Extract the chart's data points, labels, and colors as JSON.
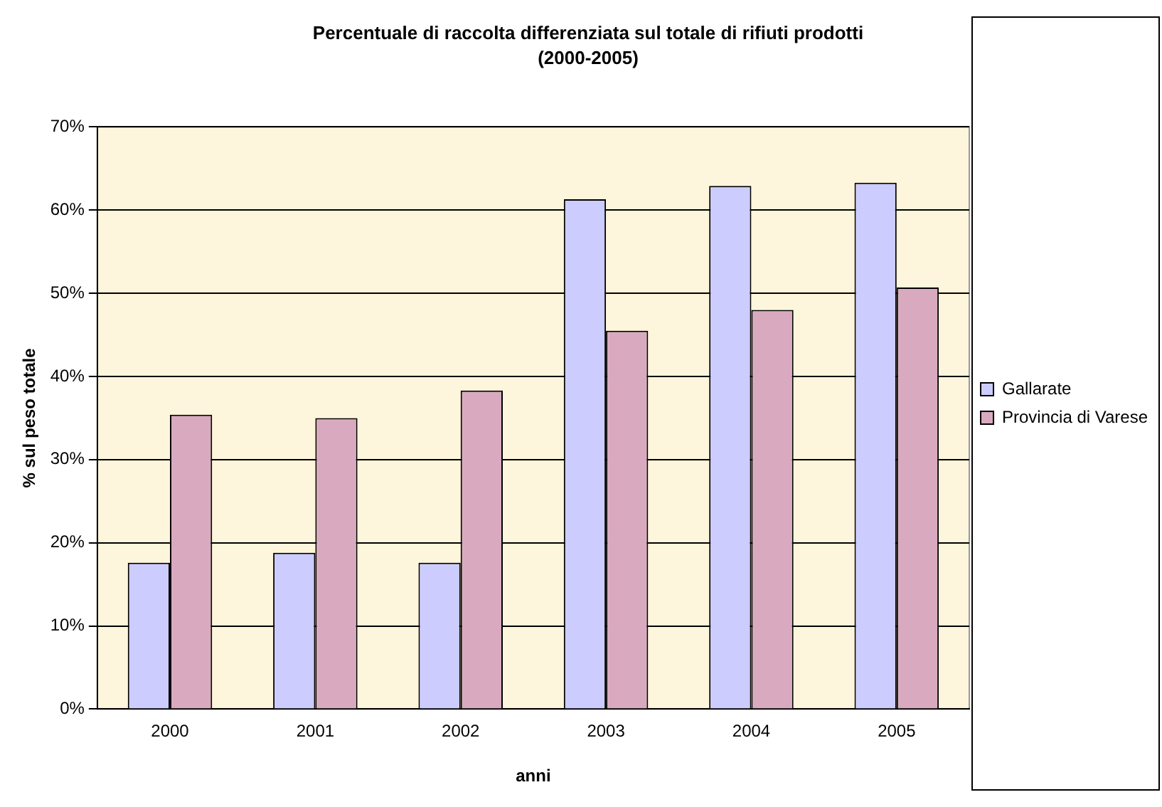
{
  "chart_data": {
    "type": "bar",
    "title": "Percentuale di raccolta differenziata sul totale di rifiuti prodotti",
    "subtitle": "(2000-2005)",
    "xlabel": "anni",
    "ylabel": "% sul peso totale",
    "categories": [
      "2000",
      "2001",
      "2002",
      "2003",
      "2004",
      "2005"
    ],
    "series": [
      {
        "name": "Gallarate",
        "color": "#ccccff",
        "values": [
          17.6,
          18.8,
          17.6,
          61.3,
          62.9,
          63.3
        ]
      },
      {
        "name": "Provincia di Varese",
        "color": "#d9aabf",
        "values": [
          35.4,
          35.0,
          38.3,
          45.5,
          48.0,
          50.7
        ]
      }
    ],
    "ylim": [
      0,
      70
    ],
    "yticks": [
      {
        "value": 0,
        "label": "0%"
      },
      {
        "value": 10,
        "label": "10%"
      },
      {
        "value": 20,
        "label": "20%"
      },
      {
        "value": 30,
        "label": "30%"
      },
      {
        "value": 40,
        "label": "40%"
      },
      {
        "value": 50,
        "label": "50%"
      },
      {
        "value": 60,
        "label": "60%"
      },
      {
        "value": 70,
        "label": "70%"
      }
    ],
    "grid": "y",
    "legend": "right"
  }
}
